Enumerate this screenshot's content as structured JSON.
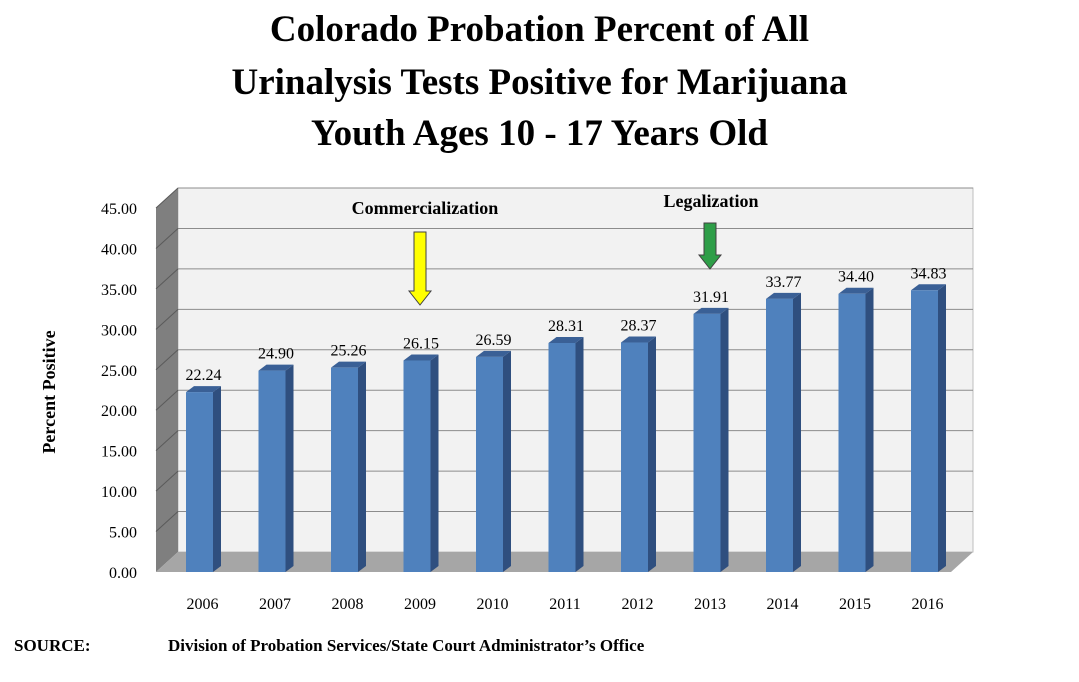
{
  "chart_data": {
    "type": "bar",
    "title_lines": [
      "Colorado Probation Percent of All",
      "Urinalysis Tests Positive for Marijuana",
      "Youth Ages 10 - 17 Years Old"
    ],
    "categories": [
      "2006",
      "2007",
      "2008",
      "2009",
      "2010",
      "2011",
      "2012",
      "2013",
      "2014",
      "2015",
      "2016"
    ],
    "values": [
      22.24,
      24.9,
      25.26,
      26.15,
      26.59,
      28.31,
      28.37,
      31.91,
      33.77,
      34.4,
      34.83
    ],
    "value_labels": [
      "22.24",
      "24.90",
      "25.26",
      "26.15",
      "26.59",
      "28.31",
      "28.37",
      "31.91",
      "33.77",
      "34.40",
      "34.83"
    ],
    "ylabel": "Percent Positive",
    "xlabel": "",
    "ylim": [
      0,
      45
    ],
    "y_ticks": [
      "0.00",
      "5.00",
      "10.00",
      "15.00",
      "20.00",
      "25.00",
      "30.00",
      "35.00",
      "40.00",
      "45.00"
    ],
    "grid": true,
    "bar_color": "#4f81bd",
    "annotations": [
      {
        "text": "Commercialization",
        "category": "2009",
        "arrow_color": "#ffff00"
      },
      {
        "text": "Legalization",
        "category": "2013",
        "arrow_color": "#2e9e48"
      }
    ]
  },
  "source": {
    "label": "SOURCE:",
    "text": "Division of Probation Services/State Court Administrator’s Office"
  }
}
